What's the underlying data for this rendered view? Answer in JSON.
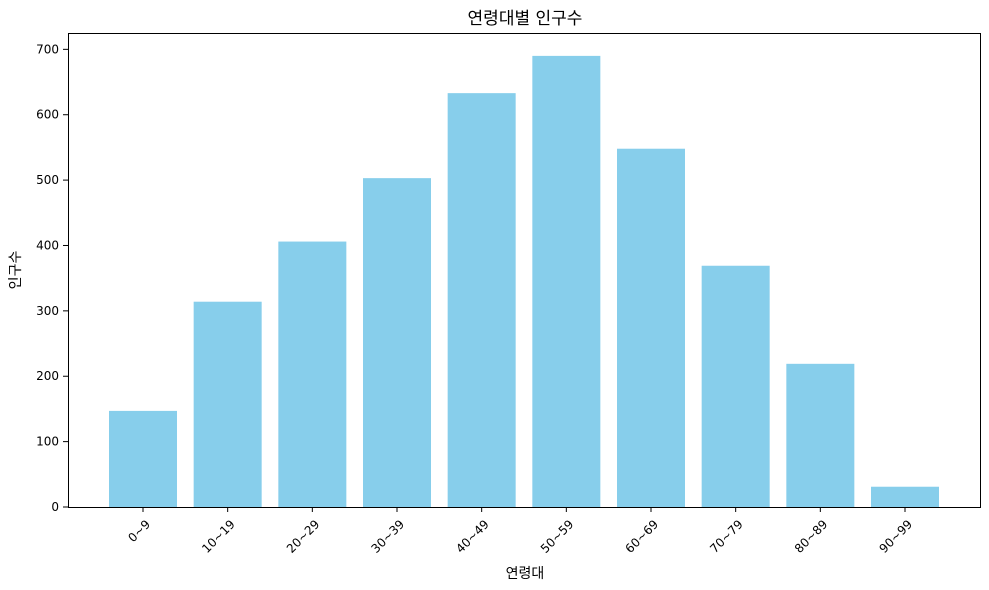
{
  "chart_data": {
    "type": "bar",
    "title": "연령대별 인구수",
    "xlabel": "연령대",
    "ylabel": "인구수",
    "categories": [
      "0~9",
      "10~19",
      "20~29",
      "30~39",
      "40~49",
      "50~59",
      "60~69",
      "70~79",
      "80~89",
      "90~99"
    ],
    "values": [
      147,
      314,
      406,
      503,
      633,
      690,
      548,
      369,
      219,
      31
    ],
    "ylim": [
      0,
      725
    ],
    "yticks": [
      0,
      100,
      200,
      300,
      400,
      500,
      600,
      700
    ],
    "bar_color": "#87ceeb",
    "grid": false,
    "legend": "none"
  }
}
